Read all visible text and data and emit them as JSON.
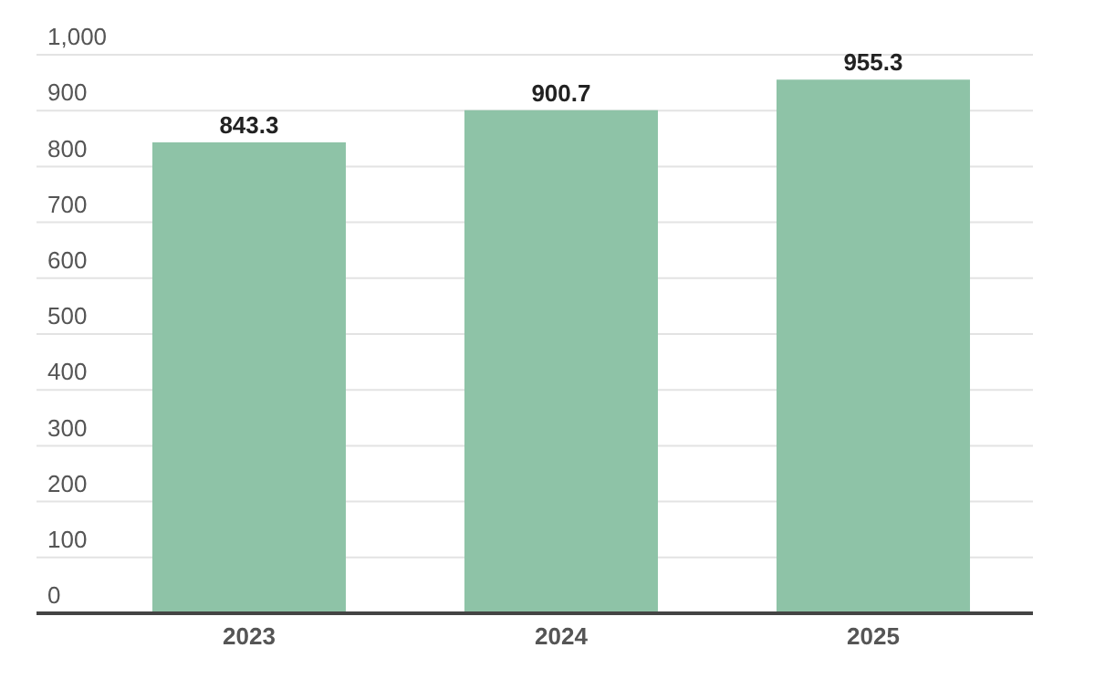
{
  "chart_data": {
    "type": "bar",
    "categories": [
      "2023",
      "2024",
      "2025"
    ],
    "values": [
      843.3,
      900.7,
      955.3
    ],
    "color": "#8ec3a7",
    "ylim": [
      0,
      1000
    ],
    "yticks": [
      0,
      100,
      200,
      300,
      400,
      500,
      600,
      700,
      800,
      900,
      {
        "value": 1000,
        "label": "1,000"
      }
    ],
    "grid": "y",
    "data_labels": true
  }
}
